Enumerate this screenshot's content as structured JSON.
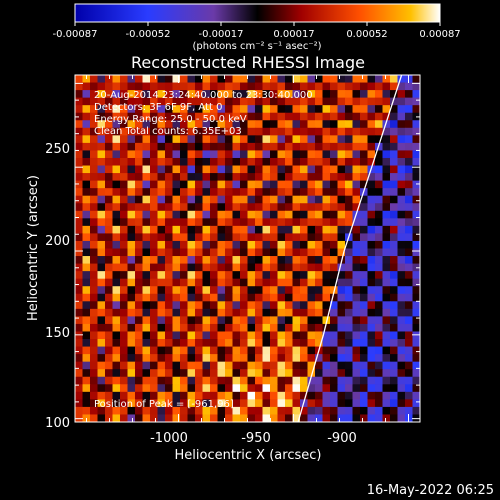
{
  "colorbar": {
    "ticks": [
      "-0.00087",
      "-0.00052",
      "-0.00017",
      "0.00017",
      "0.00052",
      "0.00087"
    ],
    "units_label": "(photons cm⁻² s⁻¹ asec⁻²)"
  },
  "info": {
    "line1": "20-Aug-2014 23:24:40.000 to 23:30:40.000",
    "line2": "Detectors: 3F 6F 9F, Att 0",
    "line3": "Energy Range: 25.0 - 50.0 keV",
    "line4": "Clean     Total counts: 6.35E+03",
    "peak": "Position of Peak = [-961,96]"
  },
  "footer": {
    "timestamp": "16-May-2022 06:25"
  },
  "chart_data": {
    "type": "heatmap",
    "title": "Reconstructed RHESSI Image",
    "xlabel": "Heliocentric X (arcsec)",
    "ylabel": "Heliocentric Y (arcsec)",
    "xlim": [
      -1045,
      -895
    ],
    "ylim": [
      98,
      305
    ],
    "x_ticks": [
      -1000,
      -950,
      -900
    ],
    "y_ticks": [
      100,
      150,
      200,
      250
    ],
    "x_tick_labels": [
      "-1000",
      "-950",
      "-900"
    ],
    "y_tick_labels": [
      "100",
      "150",
      "200",
      "250"
    ],
    "color_range": [
      -0.00087,
      0.00087
    ],
    "limb_points": [
      [
        -948,
        98
      ],
      [
        -937,
        150
      ],
      [
        -928,
        200
      ],
      [
        -916,
        250
      ],
      [
        -903,
        305
      ]
    ],
    "peak_position": [
      -961,
      96
    ]
  }
}
